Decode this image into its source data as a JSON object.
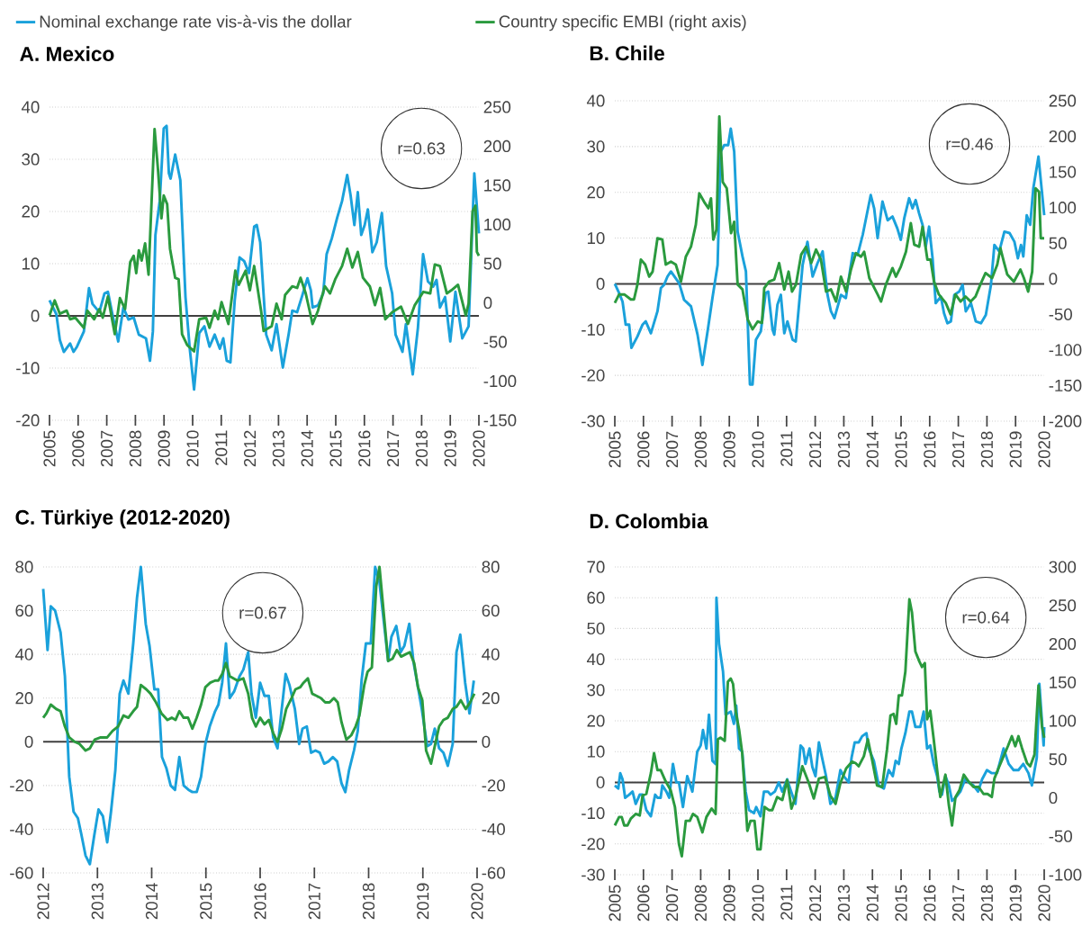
{
  "chart_data": [
    {
      "type": "line",
      "title": "A. Mexico",
      "annotations": [
        "r=0.63"
      ],
      "legend": "top",
      "grid": "y",
      "xlim": [
        2005,
        2020
      ],
      "xticks": [
        2005,
        2006,
        2007,
        2008,
        2009,
        2010,
        2011,
        2012,
        2013,
        2014,
        2015,
        2016,
        2017,
        2018,
        2019,
        2020
      ],
      "ylim": [
        -20,
        40
      ],
      "yticks": [
        -20,
        -10,
        0,
        10,
        20,
        30,
        40
      ],
      "y2lim": [
        -150,
        250
      ],
      "y2ticks": [
        -150,
        -100,
        -50,
        0,
        50,
        100,
        150,
        200,
        250
      ],
      "ref_lines": [
        {
          "axis": "y",
          "value": 0,
          "color": "#404040"
        }
      ],
      "series": [
        {
          "name": "Nominal exchange rate vis-à-vis the dollar",
          "color": "#1aa1db",
          "x": [
            2005.0,
            2005.24,
            2005.36,
            2005.5,
            2005.72,
            2005.84,
            2005.96,
            2006.2,
            2006.38,
            2006.5,
            2006.74,
            2006.92,
            2007.04,
            2007.22,
            2007.4,
            2007.58,
            2007.76,
            2007.94,
            2008.12,
            2008.37,
            2008.51,
            2008.61,
            2008.7,
            2008.85,
            2008.99,
            2009.09,
            2009.17,
            2009.23,
            2009.39,
            2009.57,
            2009.75,
            2009.9,
            2010.05,
            2010.23,
            2010.41,
            2010.59,
            2010.77,
            2010.95,
            2011.07,
            2011.19,
            2011.32,
            2011.47,
            2011.64,
            2011.8,
            2011.97,
            2012.15,
            2012.24,
            2012.36,
            2012.57,
            2012.76,
            2012.93,
            2013.15,
            2013.36,
            2013.48,
            2013.65,
            2013.83,
            2014.01,
            2014.13,
            2014.19,
            2014.38,
            2014.56,
            2014.68,
            2014.86,
            2015.05,
            2015.22,
            2015.4,
            2015.52,
            2015.65,
            2015.77,
            2015.89,
            2016.01,
            2016.12,
            2016.28,
            2016.43,
            2016.61,
            2016.76,
            2016.97,
            2017.09,
            2017.33,
            2017.45,
            2017.69,
            2017.87,
            2018.05,
            2018.22,
            2018.4,
            2018.52,
            2018.64,
            2018.82,
            2019.0,
            2019.18,
            2019.42,
            2019.64,
            2019.84,
            2020.0
          ],
          "values": [
            3,
            0.3,
            -4.6,
            -6.9,
            -5.3,
            -6.9,
            -5.9,
            -3,
            5.3,
            2.3,
            0.7,
            4.3,
            4.6,
            -0.3,
            -4.9,
            1.6,
            -0.7,
            -0.3,
            -3.6,
            -4.3,
            -8.6,
            -3,
            15.5,
            22,
            35.9,
            36.4,
            27.3,
            26.3,
            30.9,
            26,
            3.6,
            -6.3,
            -14.1,
            -3.3,
            -2,
            -5.9,
            -3.6,
            -6.3,
            -4.3,
            -8.6,
            -8.9,
            3,
            11.2,
            10.5,
            8.2,
            17.1,
            17.4,
            14.1,
            -3.6,
            -6.6,
            -1.6,
            -9.9,
            -3.3,
            1,
            0.7,
            3.9,
            7.2,
            4.9,
            1.6,
            2,
            4.3,
            11.8,
            14.8,
            18.8,
            22,
            27,
            23,
            17.4,
            23.7,
            15.5,
            17.4,
            20.4,
            12.2,
            14.1,
            19.7,
            9.5,
            4.3,
            -3.6,
            -6.9,
            -1.6,
            -11.2,
            -2.3,
            11.8,
            6.6,
            5.6,
            6.9,
            1.6,
            3.6,
            -4.9,
            4.6,
            -4.3,
            -2,
            27.3,
            15.8
          ]
        },
        {
          "name": "Country specific EMBI (right axis)",
          "color": "#2a9a3e",
          "axis": "y2",
          "x": [
            2005.0,
            2005.18,
            2005.36,
            2005.6,
            2005.72,
            2005.9,
            2006.2,
            2006.32,
            2006.56,
            2006.74,
            2006.86,
            2007.04,
            2007.28,
            2007.46,
            2007.64,
            2007.82,
            2007.94,
            2008.03,
            2008.12,
            2008.22,
            2008.34,
            2008.46,
            2008.67,
            2008.79,
            2008.91,
            2008.99,
            2009.11,
            2009.21,
            2009.39,
            2009.51,
            2009.63,
            2009.81,
            2010.05,
            2010.23,
            2010.47,
            2010.59,
            2010.77,
            2010.89,
            2011.01,
            2011.25,
            2011.49,
            2011.61,
            2011.85,
            2012.0,
            2012.15,
            2012.39,
            2012.48,
            2012.76,
            2012.93,
            2013.11,
            2013.23,
            2013.48,
            2013.65,
            2013.77,
            2013.95,
            2014.19,
            2014.38,
            2014.62,
            2014.8,
            2014.98,
            2015.22,
            2015.4,
            2015.58,
            2015.77,
            2015.95,
            2016.19,
            2016.37,
            2016.55,
            2016.73,
            2016.97,
            2017.28,
            2017.52,
            2017.76,
            2018.06,
            2018.3,
            2018.46,
            2018.64,
            2018.88,
            2019.04,
            2019.27,
            2019.54,
            2019.64,
            2019.78,
            2019.88,
            2019.93,
            2020.0
          ],
          "values": [
            -16,
            3,
            -14,
            -10,
            -21,
            -19,
            -32,
            -10,
            -21,
            -8,
            -19,
            8,
            -40,
            6,
            -8,
            52,
            60,
            38,
            67,
            54,
            76,
            36,
            222,
            170,
            108,
            137,
            126,
            69,
            32,
            30,
            -40,
            -54,
            -62,
            -21,
            -19,
            -32,
            -10,
            -21,
            1,
            -27,
            41,
            23,
            41,
            16,
            47,
            -10,
            -36,
            -30,
            -1,
            -21,
            10,
            21,
            19,
            32,
            12,
            -27,
            -10,
            21,
            12,
            30,
            47,
            69,
            45,
            65,
            32,
            21,
            -3,
            19,
            -21,
            -12,
            -5,
            -27,
            -3,
            14,
            12,
            49,
            47,
            12,
            16,
            23,
            -16,
            -1,
            117,
            124,
            65,
            60
          ]
        }
      ]
    },
    {
      "type": "line",
      "title": "B. Chile",
      "annotations": [
        "r=0.46"
      ],
      "grid": "y",
      "xlim": [
        2005,
        2020
      ],
      "xticks": [
        2005,
        2006,
        2007,
        2008,
        2009,
        2010,
        2011,
        2012,
        2013,
        2014,
        2015,
        2016,
        2017,
        2018,
        2019,
        2020
      ],
      "ylim": [
        -30,
        40
      ],
      "yticks": [
        -30,
        -20,
        -10,
        0,
        10,
        20,
        30,
        40
      ],
      "y2lim": [
        -200,
        250
      ],
      "y2ticks": [
        -200,
        -150,
        -100,
        -50,
        0,
        50,
        100,
        150,
        200,
        250
      ],
      "ref_lines": [
        {
          "axis": "y",
          "value": 0,
          "color": "#404040"
        }
      ],
      "series": [
        {
          "color": "#1aa1db",
          "x": [
            2005,
            2005.15,
            2005.27,
            2005.38,
            2005.5,
            2005.58,
            2005.79,
            2005.97,
            2006.08,
            2006.26,
            2006.49,
            2006.61,
            2006.72,
            2006.84,
            2006.96,
            2007.25,
            2007.42,
            2007.66,
            2007.89,
            2008.06,
            2008.24,
            2008.41,
            2008.59,
            2008.7,
            2008.82,
            2008.96,
            2009.05,
            2009.17,
            2009.29,
            2009.46,
            2009.58,
            2009.72,
            2009.81,
            2009.93,
            2010.1,
            2010.27,
            2010.36,
            2010.51,
            2010.57,
            2010.68,
            2010.8,
            2010.92,
            2011.03,
            2011.21,
            2011.32,
            2011.56,
            2011.73,
            2011.91,
            2012.08,
            2012.26,
            2012.43,
            2012.55,
            2012.67,
            2012.9,
            2013.07,
            2013.31,
            2013.48,
            2013.66,
            2013.94,
            2014.06,
            2014.18,
            2014.35,
            2014.53,
            2014.7,
            2014.87,
            2014.99,
            2015.11,
            2015.28,
            2015.4,
            2015.51,
            2015.63,
            2015.75,
            2015.86,
            2015.98,
            2016.1,
            2016.21,
            2016.39,
            2016.5,
            2016.62,
            2016.74,
            2016.86,
            2017.03,
            2017.15,
            2017.26,
            2017.44,
            2017.61,
            2017.79,
            2017.96,
            2018.14,
            2018.26,
            2018.43,
            2018.61,
            2018.79,
            2018.96,
            2019.08,
            2019.19,
            2019.27,
            2019.39,
            2019.51,
            2019.62,
            2019.8,
            2020
          ],
          "values": [
            0,
            -2,
            -3.9,
            -8.9,
            -8.9,
            -14,
            -11.5,
            -8.9,
            -8.2,
            -10.8,
            -6,
            -0.9,
            -0.2,
            1.6,
            2.7,
            0.1,
            -3.5,
            -4.9,
            -11.1,
            -17.7,
            -10.4,
            -3.1,
            4.1,
            28.9,
            30.3,
            30.3,
            33.9,
            28.9,
            11.4,
            6,
            2.7,
            -22,
            -22,
            -12.2,
            -10.4,
            -2,
            -1.7,
            -10,
            -11.1,
            -4.6,
            -2.4,
            -10.8,
            -8.2,
            -12.2,
            -12.6,
            4.1,
            9.2,
            1.6,
            4.5,
            7.1,
            -2.4,
            -6,
            -7.5,
            -2.4,
            -3.1,
            6.7,
            6.3,
            10.7,
            19.4,
            16.5,
            10,
            18,
            13.9,
            14.7,
            12.1,
            9.6,
            14.3,
            18.7,
            16.5,
            18.3,
            15.4,
            12.9,
            8.1,
            12.5,
            5.6,
            -4.2,
            -2.8,
            -6.4,
            -8.6,
            -8.2,
            -2.4,
            -1.7,
            -0.2,
            -6,
            -4.2,
            -8.2,
            -8.6,
            -6.8,
            -0.2,
            8.5,
            7.1,
            11.4,
            11.1,
            9.2,
            5.6,
            8.5,
            6,
            15,
            12.9,
            20.9,
            27.8,
            15
          ]
        },
        {
          "color": "#2a9a3e",
          "axis": "y2",
          "x": [
            2005,
            2005.15,
            2005.33,
            2005.56,
            2005.67,
            2005.79,
            2005.91,
            2006.06,
            2006.2,
            2006.32,
            2006.49,
            2006.66,
            2006.78,
            2006.96,
            2007.13,
            2007.31,
            2007.48,
            2007.66,
            2007.83,
            2007.95,
            2008.12,
            2008.27,
            2008.36,
            2008.44,
            2008.55,
            2008.65,
            2008.77,
            2008.91,
            2009.06,
            2009.17,
            2009.29,
            2009.46,
            2009.64,
            2009.81,
            2009.99,
            2010.14,
            2010.22,
            2010.39,
            2010.57,
            2010.74,
            2010.92,
            2011.07,
            2011.19,
            2011.33,
            2011.51,
            2011.68,
            2011.86,
            2012.03,
            2012.2,
            2012.38,
            2012.55,
            2012.73,
            2012.9,
            2013.08,
            2013.25,
            2013.42,
            2013.6,
            2013.71,
            2013.89,
            2014.18,
            2014.3,
            2014.47,
            2014.7,
            2014.82,
            2014.99,
            2015.17,
            2015.34,
            2015.46,
            2015.63,
            2015.75,
            2015.92,
            2016.03,
            2016.15,
            2016.32,
            2016.56,
            2016.73,
            2016.9,
            2017.08,
            2017.25,
            2017.43,
            2017.6,
            2017.77,
            2017.95,
            2018.18,
            2018.36,
            2018.47,
            2018.59,
            2018.71,
            2018.94,
            2019.17,
            2019.29,
            2019.44,
            2019.58,
            2019.7,
            2019.82,
            2019.88,
            2020
          ],
          "values": [
            -34,
            -22,
            -22,
            -29,
            -29,
            -8,
            27,
            20,
            3,
            10,
            57,
            55,
            20,
            24,
            20,
            -4,
            31,
            45,
            76,
            120,
            108,
            99,
            113,
            55,
            69,
            228,
            136,
            127,
            64,
            80,
            -8,
            -15,
            -57,
            -71,
            -60,
            -62,
            -13,
            -4,
            -1,
            22,
            -15,
            10,
            -18,
            -8,
            34,
            45,
            22,
            41,
            27,
            -18,
            -15,
            -32,
            3,
            -18,
            13,
            36,
            31,
            38,
            1,
            -22,
            -32,
            -8,
            15,
            3,
            17,
            38,
            78,
            48,
            45,
            73,
            27,
            27,
            -4,
            -22,
            -34,
            -50,
            -22,
            -32,
            -25,
            -32,
            -25,
            -8,
            8,
            1,
            20,
            43,
            24,
            6,
            -4,
            13,
            1,
            -18,
            10,
            127,
            122,
            57,
            57
          ]
        }
      ]
    },
    {
      "type": "line",
      "title": "C. Türkiye (2012-2020)",
      "annotations": [
        "r=0.67"
      ],
      "grid": "y",
      "xlim": [
        2012,
        2020
      ],
      "xticks": [
        2012,
        2013,
        2014,
        2015,
        2016,
        2017,
        2018,
        2019,
        2020
      ],
      "ylim": [
        -60,
        80
      ],
      "yticks": [
        -60,
        -40,
        -20,
        0,
        20,
        40,
        60,
        80
      ],
      "y2lim": [
        -60,
        80
      ],
      "y2ticks": [
        -60,
        -40,
        -20,
        0,
        20,
        40,
        60,
        80
      ],
      "ref_lines": [
        {
          "axis": "y",
          "value": 0,
          "color": "#404040"
        }
      ],
      "series": [
        {
          "color": "#1aa1db",
          "x": [
            2012,
            2012.08,
            2012.14,
            2012.22,
            2012.32,
            2012.4,
            2012.48,
            2012.56,
            2012.64,
            2012.7,
            2012.78,
            2012.86,
            2012.94,
            2013.02,
            2013.1,
            2013.18,
            2013.25,
            2013.33,
            2013.41,
            2013.48,
            2013.57,
            2013.66,
            2013.73,
            2013.8,
            2013.89,
            2013.96,
            2014.05,
            2014.12,
            2014.19,
            2014.27,
            2014.35,
            2014.43,
            2014.51,
            2014.59,
            2014.68,
            2014.75,
            2014.83,
            2014.91,
            2014.99,
            2015.07,
            2015.17,
            2015.23,
            2015.3,
            2015.37,
            2015.44,
            2015.52,
            2015.62,
            2015.69,
            2015.78,
            2015.84,
            2015.92,
            2016,
            2016.08,
            2016.16,
            2016.24,
            2016.32,
            2016.38,
            2016.47,
            2016.54,
            2016.64,
            2016.72,
            2016.78,
            2016.86,
            2016.94,
            2017.02,
            2017.1,
            2017.18,
            2017.26,
            2017.34,
            2017.42,
            2017.5,
            2017.57,
            2017.64,
            2017.73,
            2017.8,
            2017.87,
            2017.95,
            2018.04,
            2018.12,
            2018.2,
            2018.28,
            2018.36,
            2018.42,
            2018.51,
            2018.59,
            2018.66,
            2018.75,
            2018.83,
            2018.91,
            2018.98,
            2019.08,
            2019.15,
            2019.22,
            2019.3,
            2019.38,
            2019.46,
            2019.55,
            2019.62,
            2019.69,
            2019.78,
            2019.86,
            2019.94
          ],
          "values": [
            70,
            42,
            62,
            60,
            50,
            30,
            -16,
            -32,
            -35,
            -42,
            -52,
            -56,
            -43,
            -31,
            -34,
            -46,
            -32,
            -13,
            22,
            28,
            22,
            45,
            66,
            80,
            54,
            44,
            24,
            24,
            -7,
            -12,
            -20,
            -22,
            -7,
            -20,
            -22,
            -23,
            -23,
            -16,
            -1,
            7,
            14,
            17,
            27,
            45,
            20,
            23,
            30,
            33,
            41,
            22,
            11,
            27,
            21,
            21,
            2,
            -3,
            11,
            31,
            26,
            15,
            -1,
            6,
            7,
            -5,
            -4,
            -5,
            -10,
            -9,
            -7,
            -9,
            -19,
            -23,
            -13,
            -4,
            5,
            28,
            45,
            45,
            80,
            73,
            55,
            37,
            48,
            53,
            41,
            44,
            54,
            36,
            25,
            15,
            -2,
            -1,
            6,
            -3,
            -5,
            -11,
            -1,
            41,
            49,
            27,
            13,
            28
          ]
        },
        {
          "color": "#2a9a3e",
          "axis": "y2",
          "x": [
            2012,
            2012.06,
            2012.14,
            2012.24,
            2012.32,
            2012.4,
            2012.48,
            2012.58,
            2012.67,
            2012.78,
            2012.86,
            2012.95,
            2013.06,
            2013.18,
            2013.28,
            2013.38,
            2013.48,
            2013.57,
            2013.66,
            2013.73,
            2013.8,
            2013.9,
            2013.98,
            2014.08,
            2014.18,
            2014.29,
            2014.37,
            2014.44,
            2014.51,
            2014.59,
            2014.67,
            2014.75,
            2014.83,
            2014.91,
            2014.99,
            2015.08,
            2015.17,
            2015.23,
            2015.3,
            2015.37,
            2015.44,
            2015.58,
            2015.69,
            2015.78,
            2015.85,
            2015.92,
            2016,
            2016.08,
            2016.16,
            2016.24,
            2016.32,
            2016.4,
            2016.48,
            2016.58,
            2016.65,
            2016.74,
            2016.8,
            2016.88,
            2016.96,
            2017.04,
            2017.12,
            2017.2,
            2017.28,
            2017.36,
            2017.43,
            2017.5,
            2017.59,
            2017.68,
            2017.76,
            2017.83,
            2017.92,
            2017.98,
            2018.06,
            2018.14,
            2018.2,
            2018.26,
            2018.36,
            2018.44,
            2018.52,
            2018.6,
            2018.68,
            2018.76,
            2018.84,
            2018.91,
            2018.99,
            2019.06,
            2019.15,
            2019.22,
            2019.3,
            2019.38,
            2019.46,
            2019.55,
            2019.62,
            2019.7,
            2019.79,
            2019.87,
            2019.95
          ],
          "values": [
            11,
            13,
            17,
            15,
            14,
            7,
            2,
            0,
            -1,
            -4,
            -3,
            1,
            2,
            2,
            5,
            7,
            12,
            11,
            14,
            16,
            26,
            24,
            22,
            18,
            13,
            10,
            11,
            10,
            14,
            11,
            11,
            6,
            11,
            17,
            25,
            27,
            28,
            28,
            31,
            36,
            30,
            28,
            29,
            22,
            11,
            7,
            11,
            8,
            10,
            4,
            0,
            6,
            15,
            20,
            24,
            25,
            27,
            29,
            22,
            21,
            20,
            18,
            18,
            20,
            18,
            9,
            1,
            3,
            7,
            12,
            26,
            32,
            34,
            71,
            80,
            64,
            37,
            38,
            42,
            39,
            40,
            41,
            36,
            25,
            19,
            -4,
            -10,
            -2,
            7,
            10,
            11,
            15,
            16,
            19,
            15,
            18,
            22
          ]
        }
      ]
    },
    {
      "type": "line",
      "title": "D. Colombia",
      "annotations": [
        "r=0.64"
      ],
      "grid": "y",
      "xlim": [
        2005,
        2020
      ],
      "xticks": [
        2005,
        2006,
        2007,
        2008,
        2009,
        2010,
        2011,
        2012,
        2013,
        2014,
        2015,
        2016,
        2017,
        2018,
        2019,
        2020
      ],
      "ylim": [
        -30,
        70
      ],
      "yticks": [
        -30,
        -20,
        -10,
        0,
        10,
        20,
        30,
        40,
        50,
        60,
        70
      ],
      "y2lim": [
        -100,
        300
      ],
      "y2ticks": [
        -100,
        -50,
        0,
        50,
        100,
        150,
        200,
        250,
        300
      ],
      "ref_lines": [
        {
          "axis": "y",
          "value": 0,
          "color": "#404040"
        }
      ],
      "series": [
        {
          "color": "#1aa1db",
          "x": [
            2005,
            2005.12,
            2005.19,
            2005.27,
            2005.36,
            2005.5,
            2005.62,
            2005.73,
            2005.87,
            2005.97,
            2006.1,
            2006.26,
            2006.41,
            2006.49,
            2006.6,
            2006.66,
            2006.8,
            2006.9,
            2007.03,
            2007.15,
            2007.24,
            2007.38,
            2007.53,
            2007.71,
            2007.88,
            2008,
            2008.08,
            2008.2,
            2008.29,
            2008.41,
            2008.52,
            2008.55,
            2008.64,
            2008.78,
            2008.87,
            2009.05,
            2009.16,
            2009.24,
            2009.34,
            2009.45,
            2009.57,
            2009.69,
            2009.86,
            2009.94,
            2010.09,
            2010.21,
            2010.35,
            2010.44,
            2010.59,
            2010.73,
            2010.85,
            2011.02,
            2011.16,
            2011.31,
            2011.49,
            2011.58,
            2011.66,
            2011.8,
            2011.9,
            2012.01,
            2012.13,
            2012.24,
            2012.38,
            2012.53,
            2012.71,
            2012.88,
            2013,
            2013.17,
            2013.27,
            2013.38,
            2013.52,
            2013.64,
            2013.79,
            2013.87,
            2014.05,
            2014.22,
            2014.4,
            2014.57,
            2014.71,
            2014.81,
            2014.92,
            2015.01,
            2015.15,
            2015.29,
            2015.38,
            2015.5,
            2015.67,
            2015.79,
            2015.91,
            2016.02,
            2016.14,
            2016.26,
            2016.34,
            2016.43,
            2016.55,
            2016.67,
            2016.78,
            2016.9,
            2017.07,
            2017.24,
            2017.36,
            2017.53,
            2017.69,
            2017.83,
            2018,
            2018.17,
            2018.35,
            2018.58,
            2018.76,
            2018.93,
            2019.1,
            2019.27,
            2019.45,
            2019.57,
            2019.74,
            2019.83,
            2019.98,
            2020
          ],
          "values": [
            -1,
            -2,
            3,
            1,
            -5,
            -4,
            -3,
            -7,
            -4,
            -4,
            -9,
            -11,
            -4,
            -5,
            -5,
            -1,
            -3,
            -5,
            6,
            0,
            0,
            -8,
            2,
            -3,
            10,
            12,
            17,
            11,
            22,
            7,
            6,
            60,
            45,
            36,
            22,
            23,
            19,
            25,
            11,
            10,
            -3,
            -9,
            -10,
            -8,
            -11,
            -3,
            -3,
            -4,
            -3,
            0,
            -3,
            1,
            -3,
            -7,
            12,
            11,
            6,
            11,
            5,
            2,
            13,
            8,
            2,
            -7,
            -5,
            4,
            2,
            0,
            8,
            13,
            13,
            15,
            16,
            11,
            7,
            -1,
            -2,
            4,
            2,
            7,
            6,
            11,
            16,
            23,
            23,
            18,
            18,
            23,
            11,
            12,
            6,
            2,
            -3,
            -4,
            2,
            -1,
            -6,
            -5,
            -3,
            1,
            0,
            -1,
            -3,
            1,
            4,
            3,
            3,
            11,
            6,
            4,
            4,
            6,
            3,
            -1,
            8,
            32,
            12,
            18
          ]
        },
        {
          "color": "#2a9a3e",
          "axis": "y2",
          "x": [
            2005,
            2005.15,
            2005.24,
            2005.33,
            2005.44,
            2005.56,
            2005.73,
            2005.87,
            2005.97,
            2006.1,
            2006.26,
            2006.37,
            2006.49,
            2006.6,
            2006.78,
            2006.95,
            2007.1,
            2007.24,
            2007.34,
            2007.48,
            2007.62,
            2007.73,
            2007.88,
            2008.06,
            2008.2,
            2008.38,
            2008.52,
            2008.6,
            2008.69,
            2008.84,
            2008.95,
            2009.05,
            2009.13,
            2009.22,
            2009.34,
            2009.45,
            2009.63,
            2009.74,
            2009.88,
            2009.98,
            2010.09,
            2010.23,
            2010.38,
            2010.5,
            2010.67,
            2010.85,
            2011.02,
            2011.17,
            2011.31,
            2011.55,
            2011.78,
            2011.95,
            2012.13,
            2012.34,
            2012.53,
            2012.71,
            2012.88,
            2013.08,
            2013.29,
            2013.41,
            2013.52,
            2013.7,
            2013.84,
            2013.99,
            2014.16,
            2014.34,
            2014.51,
            2014.63,
            2014.74,
            2014.83,
            2014.92,
            2015.03,
            2015.15,
            2015.29,
            2015.38,
            2015.5,
            2015.64,
            2015.73,
            2015.83,
            2015.91,
            2016.02,
            2016.14,
            2016.26,
            2016.37,
            2016.55,
            2016.67,
            2016.78,
            2016.9,
            2017.04,
            2017.19,
            2017.36,
            2017.53,
            2017.71,
            2017.88,
            2018.02,
            2018.17,
            2018.26,
            2018.4,
            2018.58,
            2018.73,
            2018.87,
            2018.99,
            2019.1,
            2019.22,
            2019.4,
            2019.51,
            2019.66,
            2019.8,
            2019.92,
            2020
          ],
          "values": [
            -36,
            -25,
            -25,
            -36,
            -36,
            -27,
            -21,
            -23,
            3,
            5,
            32,
            58,
            36,
            36,
            21,
            10,
            -12,
            -60,
            -76,
            -30,
            -30,
            -21,
            -25,
            -45,
            -25,
            -14,
            -21,
            76,
            78,
            74,
            151,
            155,
            148,
            113,
            89,
            58,
            -43,
            -30,
            -30,
            -67,
            -67,
            -12,
            -16,
            -16,
            1,
            -3,
            23,
            -14,
            1,
            41,
            19,
            -1,
            25,
            27,
            3,
            -8,
            19,
            38,
            47,
            45,
            41,
            54,
            76,
            49,
            16,
            14,
            63,
            107,
            109,
            96,
            133,
            133,
            164,
            258,
            241,
            190,
            177,
            170,
            175,
            102,
            113,
            76,
            36,
            1,
            30,
            -10,
            -36,
            1,
            10,
            30,
            21,
            14,
            14,
            5,
            5,
            1,
            25,
            38,
            54,
            67,
            80,
            67,
            80,
            65,
            45,
            41,
            56,
            146,
            93,
            78
          ]
        }
      ]
    }
  ]
}
